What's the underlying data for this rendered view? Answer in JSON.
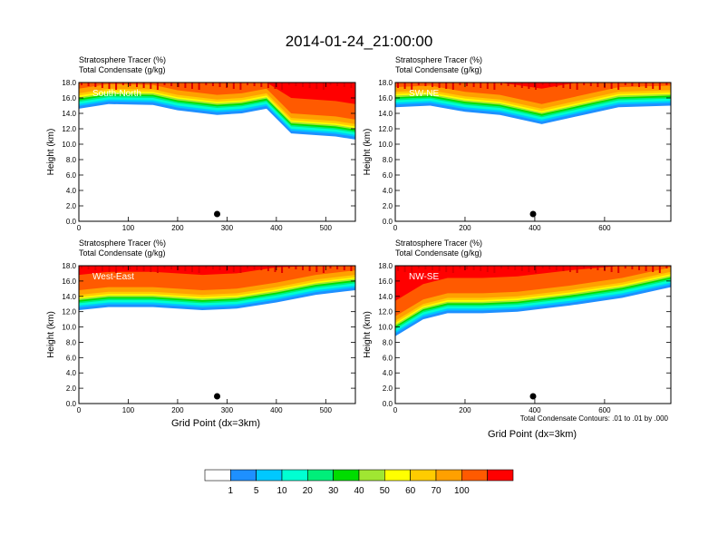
{
  "title": "2014-01-24_21:00:00",
  "panel_header": {
    "line1_label": "Stratosphere Tracer",
    "line1_units": "(%)",
    "line2_label": "Total Condensate",
    "line2_units": "(g/kg)"
  },
  "xaxis_label": "Grid Point (dx=3km)",
  "yaxis_label": "Height (km)",
  "contour_note": "Total Condensate Contours: .01 to .01 by .000",
  "colorbar": {
    "colors": [
      "#ffffff",
      "#1e90ff",
      "#00c8ff",
      "#00ffd2",
      "#00ee7a",
      "#00dd00",
      "#a0e632",
      "#ffff00",
      "#ffcc00",
      "#ffa000",
      "#ff5a00",
      "#ff0000"
    ],
    "labels": [
      "1",
      "5",
      "10",
      "20",
      "30",
      "40",
      "50",
      "60",
      "70",
      "100"
    ]
  },
  "chart_data": [
    {
      "type": "heatmap",
      "panel": "top-left",
      "label": "South-North",
      "ylim": [
        0,
        18
      ],
      "xlim": [
        0,
        560
      ],
      "x_ticks": [
        0,
        100,
        200,
        300,
        400,
        500
      ],
      "y_tick_labels": [
        "0.0",
        "2.0",
        "4.0",
        "6.0",
        "8.0",
        "10.0",
        "12.0",
        "14.0",
        "16.0",
        "18.0"
      ],
      "marker_x": 280,
      "tracer_base_km": [
        [
          0,
          14.6
        ],
        [
          60,
          15.2
        ],
        [
          150,
          15.1
        ],
        [
          200,
          14.4
        ],
        [
          280,
          13.8
        ],
        [
          330,
          14.0
        ],
        [
          380,
          14.6
        ],
        [
          430,
          11.4
        ],
        [
          520,
          11.0
        ],
        [
          560,
          10.6
        ]
      ]
    },
    {
      "type": "heatmap",
      "panel": "top-right",
      "label": "SW-NE",
      "ylim": [
        0,
        18
      ],
      "xlim": [
        0,
        790
      ],
      "x_ticks": [
        0,
        200,
        400,
        600
      ],
      "y_tick_labels": [
        "0.0",
        "2.0",
        "4.0",
        "6.0",
        "8.0",
        "10.0",
        "12.0",
        "14.0",
        "16.0",
        "18.0"
      ],
      "marker_x": 395,
      "tracer_base_km": [
        [
          0,
          14.8
        ],
        [
          100,
          15.0
        ],
        [
          200,
          14.2
        ],
        [
          300,
          13.8
        ],
        [
          420,
          12.6
        ],
        [
          520,
          13.6
        ],
        [
          640,
          14.8
        ],
        [
          790,
          15.0
        ]
      ]
    },
    {
      "type": "heatmap",
      "panel": "bottom-left",
      "label": "West-East",
      "ylim": [
        0,
        18
      ],
      "xlim": [
        0,
        560
      ],
      "x_ticks": [
        0,
        100,
        200,
        300,
        400,
        500
      ],
      "y_tick_labels": [
        "0.0",
        "2.0",
        "4.0",
        "6.0",
        "8.0",
        "10.0",
        "12.0",
        "14.0",
        "16.0",
        "18.0"
      ],
      "marker_x": 280,
      "tracer_base_km": [
        [
          0,
          12.2
        ],
        [
          60,
          12.6
        ],
        [
          150,
          12.6
        ],
        [
          250,
          12.2
        ],
        [
          320,
          12.4
        ],
        [
          400,
          13.2
        ],
        [
          480,
          14.2
        ],
        [
          560,
          14.8
        ]
      ]
    },
    {
      "type": "heatmap",
      "panel": "bottom-right",
      "label": "NW-SE",
      "ylim": [
        0,
        18
      ],
      "xlim": [
        0,
        790
      ],
      "x_ticks": [
        0,
        200,
        400,
        600
      ],
      "y_tick_labels": [
        "0.0",
        "2.0",
        "4.0",
        "6.0",
        "8.0",
        "10.0",
        "12.0",
        "14.0",
        "16.0",
        "18.0"
      ],
      "marker_x": 395,
      "tracer_base_km": [
        [
          0,
          8.8
        ],
        [
          80,
          11.0
        ],
        [
          150,
          11.8
        ],
        [
          250,
          11.8
        ],
        [
          350,
          12.0
        ],
        [
          500,
          12.8
        ],
        [
          650,
          13.8
        ],
        [
          790,
          15.2
        ]
      ]
    }
  ]
}
